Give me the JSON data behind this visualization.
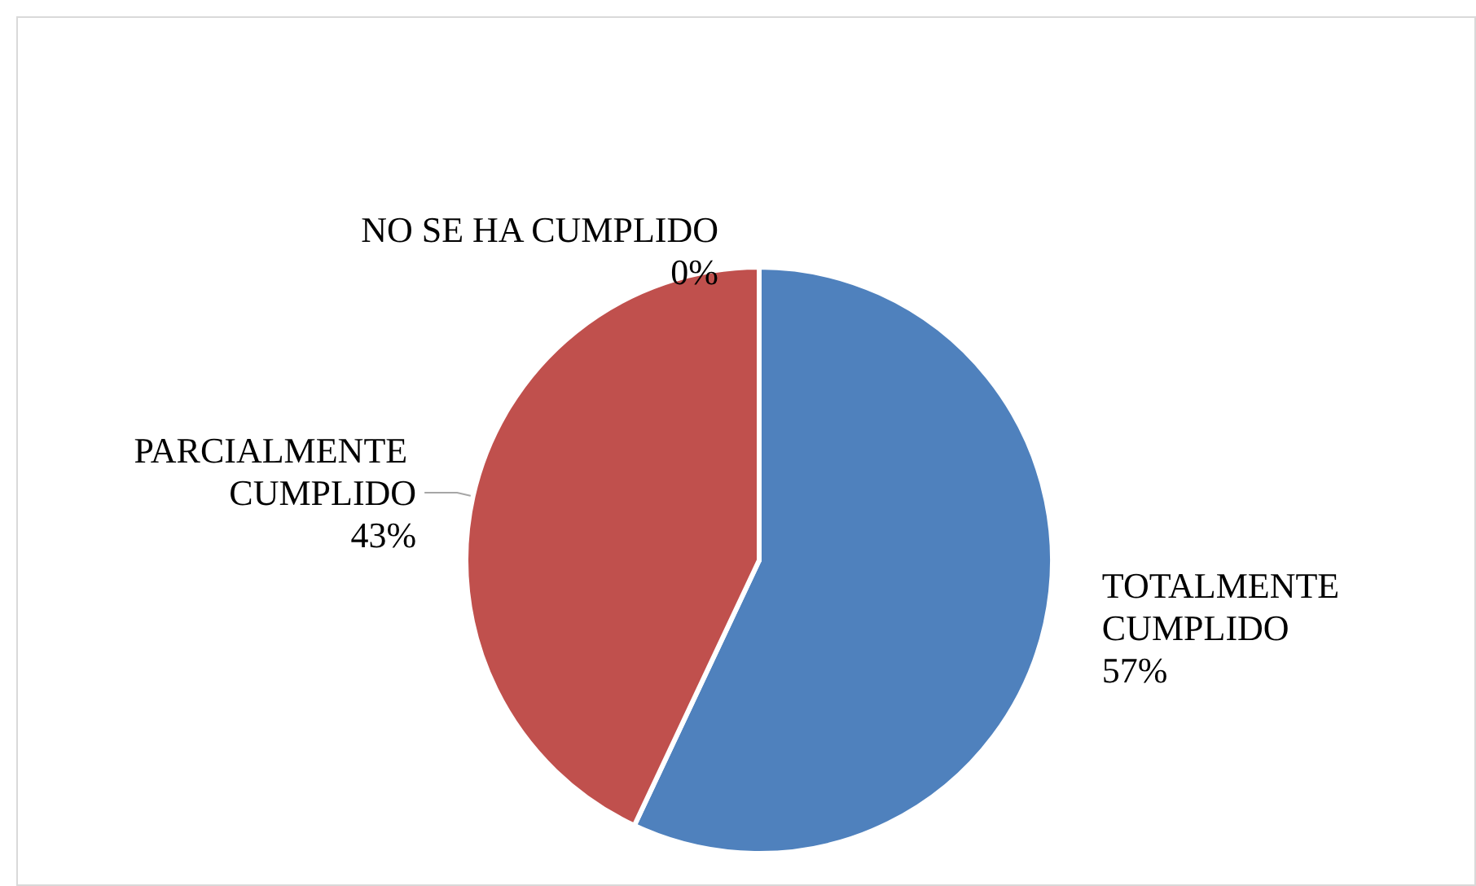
{
  "chart_data": {
    "type": "pie",
    "categories": [
      "TOTALMENTE CUMPLIDO",
      "PARCIALMENTE CUMPLIDO",
      "NO SE HA CUMPLIDO"
    ],
    "values": [
      57,
      43,
      0
    ],
    "colors": [
      "#4f81bd",
      "#c0504d",
      "#9bbb59"
    ],
    "value_labels": [
      "57%",
      "43%",
      "0%"
    ],
    "legend": false
  }
}
